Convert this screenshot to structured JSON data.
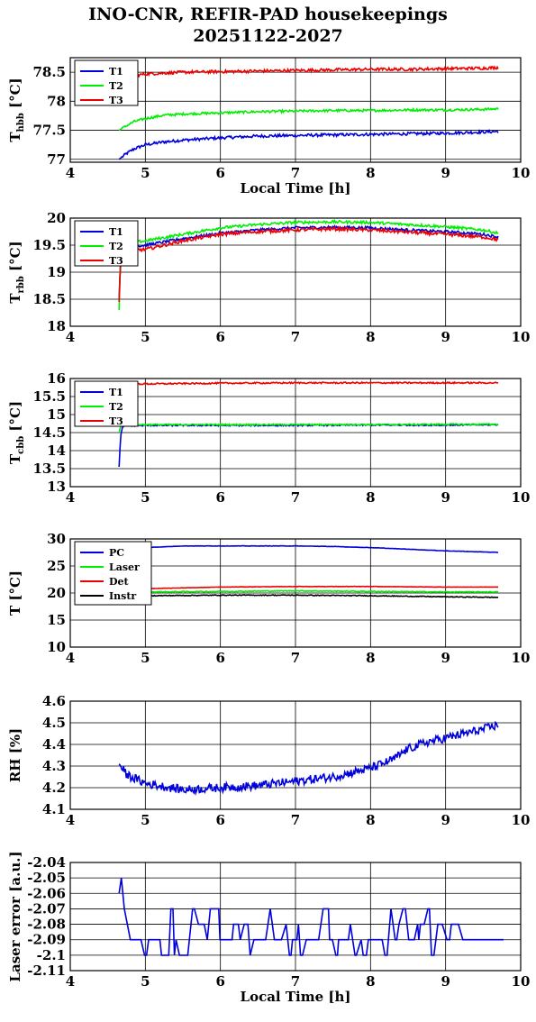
{
  "figure": {
    "title_line1": "INO-CNR, REFIR-PAD housekeepings",
    "title_line2": "20251122-2027"
  },
  "colors": {
    "blue": "#0000dd",
    "green": "#00ee00",
    "red": "#ee0000",
    "black": "#000000"
  },
  "chart_data": [
    {
      "type": "line",
      "ylabel_main": "T",
      "ylabel_sub": "hbb",
      "ylabel_unit": " [°C]",
      "xlabel": "Local Time [h]",
      "xlim": [
        4,
        10
      ],
      "ylim": [
        76.95,
        78.75
      ],
      "xticks": [
        4,
        5,
        6,
        7,
        8,
        9,
        10
      ],
      "yticks": [
        77,
        77.5,
        78,
        78.5
      ],
      "ytick_labels": [
        "77",
        "77.5",
        "78",
        "78.5"
      ],
      "legend_position": "top-left",
      "series": [
        {
          "name": "T1",
          "color": "#0000dd",
          "points": [
            [
              4.65,
              77.0
            ],
            [
              4.75,
              77.1
            ],
            [
              4.85,
              77.18
            ],
            [
              5.0,
              77.25
            ],
            [
              5.25,
              77.3
            ],
            [
              5.5,
              77.33
            ],
            [
              6.0,
              77.37
            ],
            [
              6.5,
              77.4
            ],
            [
              7.0,
              77.41
            ],
            [
              7.5,
              77.42
            ],
            [
              8.0,
              77.43
            ],
            [
              8.5,
              77.44
            ],
            [
              9.0,
              77.45
            ],
            [
              9.5,
              77.47
            ],
            [
              9.7,
              77.48
            ]
          ],
          "noise": 0.025
        },
        {
          "name": "T2",
          "color": "#00ee00",
          "points": [
            [
              4.65,
              77.5
            ],
            [
              4.75,
              77.58
            ],
            [
              4.85,
              77.65
            ],
            [
              5.0,
              77.7
            ],
            [
              5.25,
              77.76
            ],
            [
              5.5,
              77.78
            ],
            [
              6.0,
              77.8
            ],
            [
              6.5,
              77.82
            ],
            [
              7.0,
              77.83
            ],
            [
              7.5,
              77.84
            ],
            [
              8.0,
              77.84
            ],
            [
              8.5,
              77.85
            ],
            [
              9.0,
              77.85
            ],
            [
              9.5,
              77.86
            ],
            [
              9.7,
              77.87
            ]
          ],
          "noise": 0.02
        },
        {
          "name": "T3",
          "color": "#ee0000",
          "points": [
            [
              4.65,
              78.35
            ],
            [
              4.75,
              78.4
            ],
            [
              4.85,
              78.44
            ],
            [
              5.0,
              78.47
            ],
            [
              5.5,
              78.5
            ],
            [
              6.0,
              78.51
            ],
            [
              6.5,
              78.52
            ],
            [
              7.0,
              78.53
            ],
            [
              7.5,
              78.54
            ],
            [
              8.0,
              78.55
            ],
            [
              8.5,
              78.55
            ],
            [
              9.0,
              78.56
            ],
            [
              9.5,
              78.57
            ],
            [
              9.7,
              78.58
            ]
          ],
          "noise": 0.025
        }
      ]
    },
    {
      "type": "line",
      "ylabel_main": "T",
      "ylabel_sub": "rbb",
      "ylabel_unit": " [°C]",
      "xlabel": "",
      "xlim": [
        4,
        10
      ],
      "ylim": [
        18,
        20
      ],
      "xticks": [
        4,
        5,
        6,
        7,
        8,
        9,
        10
      ],
      "yticks": [
        18,
        18.5,
        19,
        19.5,
        20
      ],
      "ytick_labels": [
        "18",
        "18.5",
        "19",
        "19.5",
        "20"
      ],
      "legend_position": "top-left",
      "series": [
        {
          "name": "T1",
          "color": "#0000dd",
          "points": [
            [
              4.65,
              18.5
            ],
            [
              4.67,
              19.3
            ],
            [
              4.7,
              19.45
            ],
            [
              5.0,
              19.5
            ],
            [
              5.5,
              19.62
            ],
            [
              6.0,
              19.72
            ],
            [
              6.5,
              19.78
            ],
            [
              7.0,
              19.82
            ],
            [
              7.5,
              19.83
            ],
            [
              8.0,
              19.82
            ],
            [
              8.5,
              19.78
            ],
            [
              9.0,
              19.75
            ],
            [
              9.5,
              19.7
            ],
            [
              9.7,
              19.65
            ]
          ],
          "noise": 0.025
        },
        {
          "name": "T2",
          "color": "#00ee00",
          "points": [
            [
              4.65,
              18.3
            ],
            [
              4.67,
              19.35
            ],
            [
              4.7,
              19.52
            ],
            [
              5.0,
              19.58
            ],
            [
              5.5,
              19.7
            ],
            [
              6.0,
              19.82
            ],
            [
              6.5,
              19.88
            ],
            [
              7.0,
              19.92
            ],
            [
              7.5,
              19.93
            ],
            [
              8.0,
              19.92
            ],
            [
              8.5,
              19.88
            ],
            [
              9.0,
              19.84
            ],
            [
              9.5,
              19.78
            ],
            [
              9.7,
              19.72
            ]
          ],
          "noise": 0.025
        },
        {
          "name": "T3",
          "color": "#ee0000",
          "points": [
            [
              4.65,
              18.45
            ],
            [
              4.67,
              19.2
            ],
            [
              4.7,
              19.4
            ],
            [
              5.0,
              19.42
            ],
            [
              5.5,
              19.58
            ],
            [
              6.0,
              19.7
            ],
            [
              6.5,
              19.75
            ],
            [
              7.0,
              19.78
            ],
            [
              7.5,
              19.8
            ],
            [
              8.0,
              19.78
            ],
            [
              8.5,
              19.74
            ],
            [
              9.0,
              19.7
            ],
            [
              9.5,
              19.65
            ],
            [
              9.7,
              19.6
            ]
          ],
          "noise": 0.03
        }
      ]
    },
    {
      "type": "line",
      "ylabel_main": "T",
      "ylabel_sub": "cbb",
      "ylabel_unit": " [°C]",
      "xlabel": "",
      "xlim": [
        4,
        10
      ],
      "ylim": [
        13,
        16
      ],
      "xticks": [
        4,
        5,
        6,
        7,
        8,
        9,
        10
      ],
      "yticks": [
        13,
        13.5,
        14,
        14.5,
        15,
        15.5,
        16
      ],
      "ytick_labels": [
        "13",
        "13.5",
        "14",
        "14.5",
        "15",
        "15.5",
        "16"
      ],
      "legend_position": "top-left",
      "series": [
        {
          "name": "T1",
          "color": "#0000dd",
          "points": [
            [
              4.65,
              13.55
            ],
            [
              4.67,
              14.4
            ],
            [
              4.7,
              14.68
            ],
            [
              5.0,
              14.7
            ],
            [
              6.0,
              14.7
            ],
            [
              7.0,
              14.7
            ],
            [
              8.0,
              14.71
            ],
            [
              9.0,
              14.71
            ],
            [
              9.7,
              14.72
            ]
          ],
          "noise": 0.02
        },
        {
          "name": "T2",
          "color": "#00ee00",
          "points": [
            [
              4.65,
              14.5
            ],
            [
              4.67,
              14.68
            ],
            [
              4.7,
              14.72
            ],
            [
              5.0,
              14.72
            ],
            [
              6.0,
              14.72
            ],
            [
              7.0,
              14.72
            ],
            [
              8.0,
              14.72
            ],
            [
              9.0,
              14.73
            ],
            [
              9.7,
              14.73
            ]
          ],
          "noise": 0.02
        },
        {
          "name": "T3",
          "color": "#ee0000",
          "points": [
            [
              4.65,
              15.85
            ],
            [
              5.0,
              15.85
            ],
            [
              6.0,
              15.87
            ],
            [
              7.0,
              15.88
            ],
            [
              8.0,
              15.88
            ],
            [
              9.0,
              15.88
            ],
            [
              9.7,
              15.88
            ]
          ],
          "noise": 0.02
        }
      ]
    },
    {
      "type": "line",
      "ylabel_main": "T [°C]",
      "ylabel_sub": "",
      "ylabel_unit": "",
      "xlabel": "",
      "xlim": [
        4,
        10
      ],
      "ylim": [
        10,
        30
      ],
      "xticks": [
        4,
        5,
        6,
        7,
        8,
        9,
        10
      ],
      "yticks": [
        10,
        15,
        20,
        25,
        30
      ],
      "ytick_labels": [
        "10",
        "15",
        "20",
        "25",
        "30"
      ],
      "legend_position": "top-left",
      "series": [
        {
          "name": "PC",
          "color": "#0000dd",
          "points": [
            [
              4.65,
              28.0
            ],
            [
              5.0,
              28.4
            ],
            [
              5.5,
              28.7
            ],
            [
              6.0,
              28.7
            ],
            [
              7.0,
              28.7
            ],
            [
              7.5,
              28.6
            ],
            [
              8.0,
              28.4
            ],
            [
              8.5,
              28.1
            ],
            [
              9.0,
              27.8
            ],
            [
              9.5,
              27.6
            ],
            [
              9.7,
              27.5
            ]
          ],
          "noise": 0.03
        },
        {
          "name": "Laser",
          "color": "#00ee00",
          "points": [
            [
              4.65,
              20.0
            ],
            [
              5.0,
              20.2
            ],
            [
              6.0,
              20.3
            ],
            [
              7.0,
              20.4
            ],
            [
              8.0,
              20.3
            ],
            [
              9.0,
              20.2
            ],
            [
              9.7,
              20.2
            ]
          ],
          "noise": 0.08
        },
        {
          "name": "Det",
          "color": "#ee0000",
          "points": [
            [
              4.65,
              20.6
            ],
            [
              5.0,
              20.8
            ],
            [
              6.0,
              21.1
            ],
            [
              7.0,
              21.2
            ],
            [
              8.0,
              21.2
            ],
            [
              9.0,
              21.1
            ],
            [
              9.7,
              21.1
            ]
          ],
          "noise": 0.03
        },
        {
          "name": "Instr",
          "color": "#000000",
          "points": [
            [
              4.65,
              19.2
            ],
            [
              5.0,
              19.5
            ],
            [
              6.0,
              19.6
            ],
            [
              7.0,
              19.6
            ],
            [
              8.0,
              19.5
            ],
            [
              9.0,
              19.3
            ],
            [
              9.7,
              19.2
            ]
          ],
          "noise": 0.07
        }
      ]
    },
    {
      "type": "line",
      "ylabel_main": "RH [%]",
      "ylabel_sub": "",
      "ylabel_unit": "",
      "xlabel": "",
      "xlim": [
        4,
        10
      ],
      "ylim": [
        4.1,
        4.6
      ],
      "xticks": [
        4,
        5,
        6,
        7,
        8,
        9,
        10
      ],
      "yticks": [
        4.1,
        4.2,
        4.3,
        4.4,
        4.5,
        4.6
      ],
      "ytick_labels": [
        "4.1",
        "4.2",
        "4.3",
        "4.4",
        "4.5",
        "4.6"
      ],
      "legend_position": "none",
      "series": [
        {
          "name": "",
          "color": "#0000dd",
          "points": [
            [
              4.65,
              4.31
            ],
            [
              4.75,
              4.26
            ],
            [
              5.0,
              4.22
            ],
            [
              5.5,
              4.19
            ],
            [
              6.0,
              4.2
            ],
            [
              6.5,
              4.21
            ],
            [
              7.0,
              4.23
            ],
            [
              7.5,
              4.25
            ],
            [
              8.0,
              4.29
            ],
            [
              8.3,
              4.33
            ],
            [
              8.5,
              4.38
            ],
            [
              8.75,
              4.41
            ],
            [
              9.0,
              4.43
            ],
            [
              9.25,
              4.45
            ],
            [
              9.5,
              4.47
            ],
            [
              9.7,
              4.49
            ]
          ],
          "noise": 0.02
        }
      ]
    },
    {
      "type": "line",
      "ylabel_main": "Laser error [a.u.]",
      "ylabel_sub": "",
      "ylabel_unit": "",
      "xlabel": "Local Time [h]",
      "xlim": [
        4,
        10
      ],
      "ylim": [
        -2.11,
        -2.04
      ],
      "xticks": [
        4,
        5,
        6,
        7,
        8,
        9,
        10
      ],
      "yticks": [
        -2.11,
        -2.1,
        -2.09,
        -2.08,
        -2.07,
        -2.06,
        -2.05,
        -2.04
      ],
      "ytick_labels": [
        "-2.11",
        "-2.1",
        "-2.09",
        "-2.08",
        "-2.07",
        "-2.06",
        "-2.05",
        "-2.04"
      ],
      "legend_position": "none",
      "series": [
        {
          "name": "",
          "color": "#0000dd",
          "step": true,
          "levels": [
            -2.09,
            -2.08,
            -2.07,
            -2.1
          ],
          "points": [
            [
              4.65,
              -2.06
            ],
            [
              4.68,
              -2.05
            ],
            [
              4.72,
              -2.07
            ],
            [
              4.8,
              -2.09
            ]
          ],
          "noise": 0
        }
      ]
    }
  ]
}
